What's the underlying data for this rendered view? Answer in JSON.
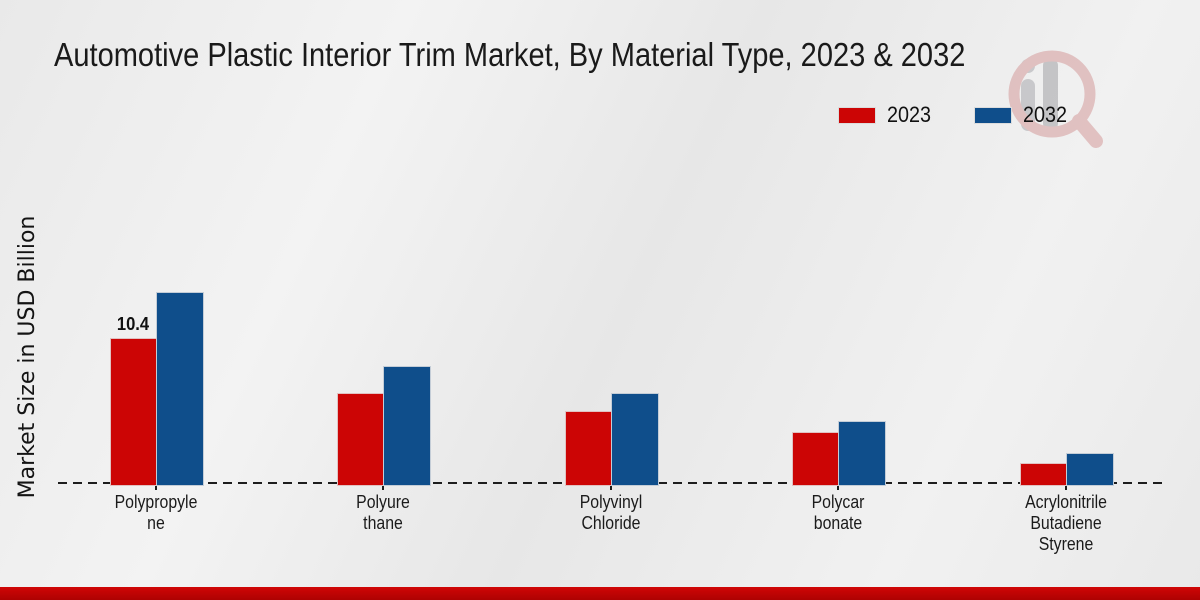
{
  "page": {
    "title": "Automotive Plastic Interior Trim Market, By Material Type, 2023 & 2032",
    "footer_color": "#c00000",
    "background_color": "#e9e9e9",
    "watermark_icon": "magnifier-people-logo",
    "watermark_colors": {
      "ring": "#d49b9b",
      "bars": "#a9a9ad"
    }
  },
  "chart_data": {
    "type": "bar",
    "title": "Automotive Plastic Interior Trim Market, By Material Type, 2023 & 2032",
    "xlabel": "",
    "ylabel": "Market Size in USD Billion",
    "categories": [
      "Polypropylene",
      "Polyurethane",
      "Polyvinyl Chloride",
      "Polycarbonate",
      "Acrylonitrile Butadiene Styrene"
    ],
    "category_label_lines": [
      "Polypropyle\nne",
      "Polyure\nthane",
      "Polyvinyl\nChloride",
      "Polycar\nbonate",
      "Acrylonitrile\nButadiene\nStyrene"
    ],
    "series": [
      {
        "name": "2023",
        "color": "#cc0505",
        "values": [
          10.4,
          6.5,
          5.2,
          3.7,
          1.5
        ]
      },
      {
        "name": "2032",
        "color": "#0f4e8b",
        "values": [
          13.7,
          8.4,
          6.5,
          4.5,
          2.2
        ]
      }
    ],
    "annotations": [
      {
        "series": 0,
        "category": 0,
        "text": "10.4"
      }
    ],
    "legend": {
      "position": "top-right",
      "entries": [
        "2023",
        "2032"
      ]
    },
    "baseline": {
      "value": 0,
      "style": "dashed",
      "color": "#1d1d1d"
    },
    "ylim": [
      0,
      14
    ],
    "grid": false
  }
}
